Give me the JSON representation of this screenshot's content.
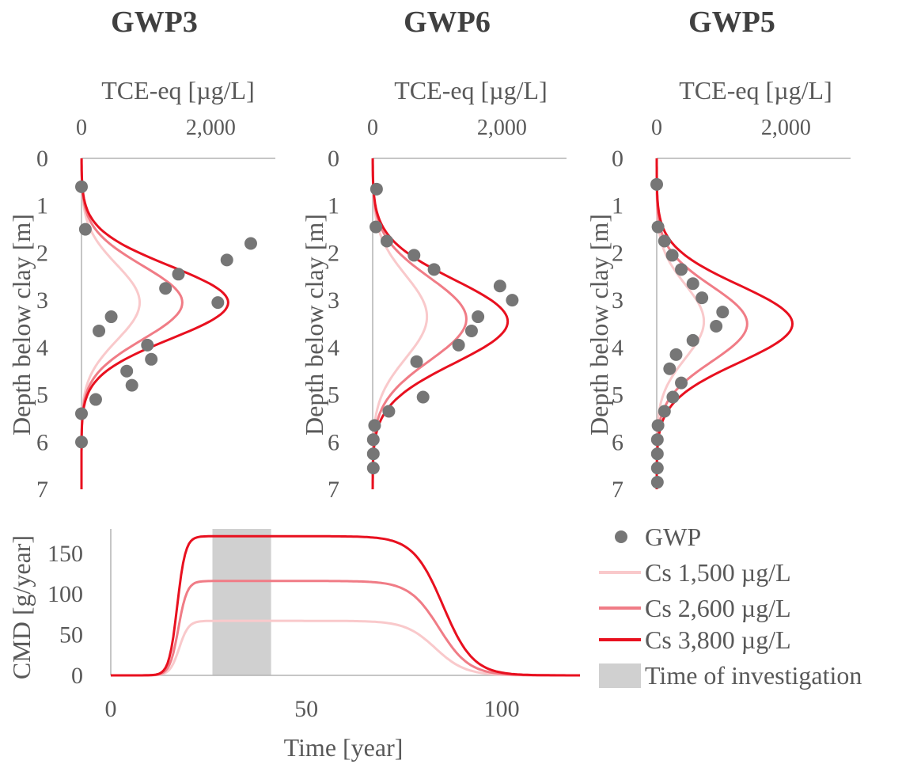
{
  "colors": {
    "axis": "#b3b3b3",
    "text": "#595959",
    "title": "#404040",
    "gwp_marker": "#767676",
    "cs1500": "#f9c9cb",
    "cs2600": "#f07c86",
    "cs3800": "#e8101f",
    "investigation": "#d0d0d0"
  },
  "chart_data": [
    {
      "type": "line",
      "panel": "GWP3",
      "title": "GWP3",
      "xlabel": "TCE-eq [µg/L]",
      "ylabel": "Depth below clay [m]",
      "x_ticks": [
        "0",
        "2,000"
      ],
      "y_ticks": [
        "0",
        "1",
        "2",
        "3",
        "4",
        "5",
        "6",
        "7"
      ],
      "xlim": [
        0,
        3000
      ],
      "ylim": [
        0,
        7
      ],
      "curves": [
        {
          "name": "Cs 1,500 µg/L",
          "peak": 900,
          "depth": 3.05,
          "width": 0.8
        },
        {
          "name": "Cs 2,600 µg/L",
          "peak": 1560,
          "depth": 3.05,
          "width": 0.78
        },
        {
          "name": "Cs 3,800 µg/L",
          "peak": 2270,
          "depth": 3.05,
          "width": 0.77
        }
      ],
      "points": [
        {
          "x": 0,
          "y": 0.6
        },
        {
          "x": 60,
          "y": 1.5
        },
        {
          "x": 2620,
          "y": 1.8
        },
        {
          "x": 2250,
          "y": 2.15
        },
        {
          "x": 1500,
          "y": 2.45
        },
        {
          "x": 1300,
          "y": 2.75
        },
        {
          "x": 2110,
          "y": 3.05
        },
        {
          "x": 460,
          "y": 3.35
        },
        {
          "x": 270,
          "y": 3.65
        },
        {
          "x": 1020,
          "y": 3.95
        },
        {
          "x": 1080,
          "y": 4.25
        },
        {
          "x": 700,
          "y": 4.5
        },
        {
          "x": 780,
          "y": 4.8
        },
        {
          "x": 220,
          "y": 5.1
        },
        {
          "x": 0,
          "y": 5.4
        },
        {
          "x": 0,
          "y": 6.0
        }
      ]
    },
    {
      "type": "line",
      "panel": "GWP6",
      "title": "GWP6",
      "xlabel": "TCE-eq [µg/L]",
      "ylabel": "Depth below clay [m]",
      "x_ticks": [
        "0",
        "2,000"
      ],
      "y_ticks": [
        "0",
        "1",
        "2",
        "3",
        "4",
        "5",
        "6",
        "7"
      ],
      "xlim": [
        0,
        3000
      ],
      "ylim": [
        0,
        7
      ],
      "curves": [
        {
          "name": "Cs 1,500 µg/L",
          "peak": 840,
          "depth": 3.35,
          "width": 0.88
        },
        {
          "name": "Cs 2,600 µg/L",
          "peak": 1450,
          "depth": 3.4,
          "width": 0.88
        },
        {
          "name": "Cs 3,800 µg/L",
          "peak": 2090,
          "depth": 3.45,
          "width": 0.88
        }
      ],
      "points": [
        {
          "x": 60,
          "y": 0.65
        },
        {
          "x": 50,
          "y": 1.45
        },
        {
          "x": 220,
          "y": 1.75
        },
        {
          "x": 640,
          "y": 2.05
        },
        {
          "x": 950,
          "y": 2.35
        },
        {
          "x": 1970,
          "y": 2.7
        },
        {
          "x": 2160,
          "y": 3.0
        },
        {
          "x": 1630,
          "y": 3.35
        },
        {
          "x": 1530,
          "y": 3.65
        },
        {
          "x": 1330,
          "y": 3.95
        },
        {
          "x": 680,
          "y": 4.3
        },
        {
          "x": 780,
          "y": 5.05
        },
        {
          "x": 250,
          "y": 5.35
        },
        {
          "x": 30,
          "y": 5.65
        },
        {
          "x": 10,
          "y": 5.95
        },
        {
          "x": 10,
          "y": 6.25
        },
        {
          "x": 10,
          "y": 6.55
        }
      ]
    },
    {
      "type": "line",
      "panel": "GWP5",
      "title": "GWP5",
      "xlabel": "TCE-eq [µg/L]",
      "ylabel": "Depth below clay [m]",
      "x_ticks": [
        "0",
        "2,000"
      ],
      "y_ticks": [
        "0",
        "1",
        "2",
        "3",
        "4",
        "5",
        "6",
        "7"
      ],
      "xlim": [
        0,
        3000
      ],
      "ylim": [
        0,
        7
      ],
      "curves": [
        {
          "name": "Cs 1,500 µg/L",
          "peak": 730,
          "depth": 3.45,
          "width": 0.78
        },
        {
          "name": "Cs 2,600 µg/L",
          "peak": 1400,
          "depth": 3.5,
          "width": 0.8
        },
        {
          "name": "Cs 3,800 µg/L",
          "peak": 2100,
          "depth": 3.5,
          "width": 0.82
        }
      ],
      "points": [
        {
          "x": 0,
          "y": 0.55
        },
        {
          "x": 20,
          "y": 1.45
        },
        {
          "x": 120,
          "y": 1.75
        },
        {
          "x": 240,
          "y": 2.05
        },
        {
          "x": 380,
          "y": 2.35
        },
        {
          "x": 560,
          "y": 2.65
        },
        {
          "x": 700,
          "y": 2.95
        },
        {
          "x": 1020,
          "y": 3.25
        },
        {
          "x": 920,
          "y": 3.55
        },
        {
          "x": 560,
          "y": 3.85
        },
        {
          "x": 300,
          "y": 4.15
        },
        {
          "x": 200,
          "y": 4.45
        },
        {
          "x": 380,
          "y": 4.75
        },
        {
          "x": 250,
          "y": 5.05
        },
        {
          "x": 120,
          "y": 5.35
        },
        {
          "x": 20,
          "y": 5.65
        },
        {
          "x": 10,
          "y": 5.95
        },
        {
          "x": 10,
          "y": 6.25
        },
        {
          "x": 10,
          "y": 6.55
        },
        {
          "x": 10,
          "y": 6.85
        }
      ]
    },
    {
      "type": "line",
      "panel": "CMD",
      "xlabel": "Time [year]",
      "ylabel": "CMD [g/year]",
      "x_ticks": [
        "0",
        "50",
        "100"
      ],
      "y_ticks": [
        "0",
        "50",
        "100",
        "150"
      ],
      "xlim": [
        0,
        120
      ],
      "ylim": [
        0,
        180
      ],
      "investigation_window": [
        26,
        41
      ],
      "curves": [
        {
          "name": "Cs 1,500 µg/L",
          "plateau": 67,
          "rise_mid": 17.5,
          "rise_k": 0.85,
          "fall_mid": 83,
          "fall_k": 0.26
        },
        {
          "name": "Cs 2,600 µg/L",
          "plateau": 116,
          "rise_mid": 17.3,
          "rise_k": 0.9,
          "fall_mid": 84,
          "fall_k": 0.26
        },
        {
          "name": "Cs 3,800 µg/L",
          "plateau": 171,
          "rise_mid": 17.0,
          "rise_k": 0.95,
          "fall_mid": 85,
          "fall_k": 0.26
        }
      ]
    }
  ],
  "legend": {
    "gwp": "GWP",
    "cs1500": "Cs 1,500 µg/L",
    "cs2600": "Cs 2,600 µg/L",
    "cs3800": "Cs 3,800 µg/L",
    "investigation": "Time of investigation"
  }
}
